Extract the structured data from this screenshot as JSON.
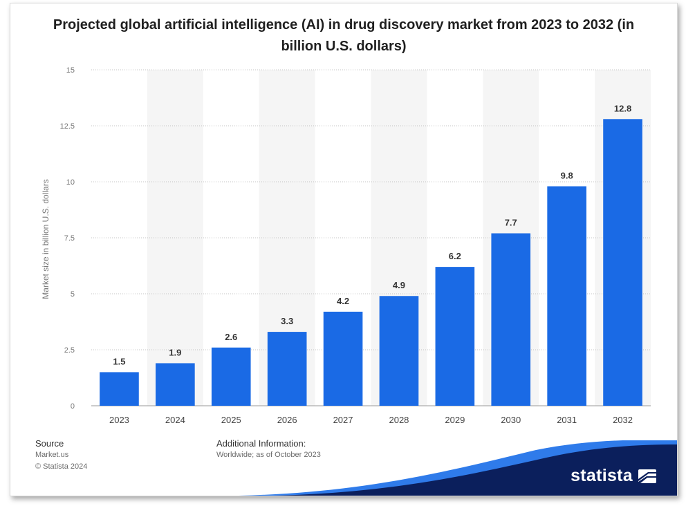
{
  "title": "Projected global artificial intelligence (AI) in drug discovery market from 2023 to 2032 (in billion U.S. dollars)",
  "chart_data": {
    "type": "bar",
    "title": "Projected global artificial intelligence (AI) in drug discovery market from 2023 to 2032 (in billion U.S. dollars)",
    "categories": [
      "2023",
      "2024",
      "2025",
      "2026",
      "2027",
      "2028",
      "2029",
      "2030",
      "2031",
      "2032"
    ],
    "values": [
      1.5,
      1.9,
      2.6,
      3.3,
      4.2,
      4.9,
      6.2,
      7.7,
      9.8,
      12.8
    ],
    "value_labels": [
      "1.5",
      "1.9",
      "2.6",
      "3.3",
      "4.2",
      "4.9",
      "6.2",
      "7.7",
      "9.8",
      "12.8"
    ],
    "xlabel": "",
    "ylabel": "Market size in billion U.S. dollars",
    "ylim": [
      0,
      15
    ],
    "yticks": [
      0,
      2.5,
      5,
      7.5,
      10,
      12.5,
      15
    ],
    "ytick_labels": [
      "0",
      "2.5",
      "5",
      "7.5",
      "10",
      "12.5",
      "15"
    ],
    "grid": true,
    "legend": "none",
    "bar_color": "#1a6ae5"
  },
  "footer": {
    "source_heading": "Source",
    "source_lines": [
      "Market.us",
      "© Statista 2024"
    ],
    "info_heading": "Additional Information:",
    "info_lines": [
      "Worldwide; as of October 2023"
    ]
  },
  "brand": {
    "name": "statista",
    "logo_icon": "statista-logo-icon",
    "swoosh_color": "#0b1f5c",
    "swoosh_accent": "#2f7bea"
  }
}
